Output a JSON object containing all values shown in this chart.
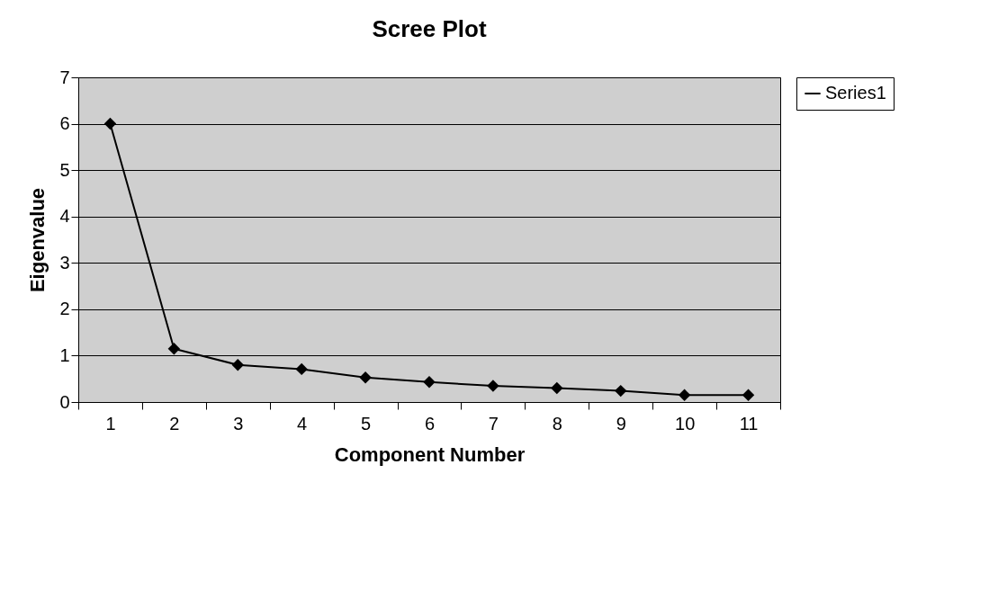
{
  "chart_data": {
    "type": "line",
    "title": "Scree Plot",
    "xlabel": "Component Number",
    "ylabel": "Eigenvalue",
    "categories": [
      "1",
      "2",
      "3",
      "4",
      "5",
      "6",
      "7",
      "8",
      "9",
      "10",
      "11"
    ],
    "series": [
      {
        "name": "Series1",
        "color": "#000000",
        "values": [
          6.0,
          1.15,
          0.8,
          0.71,
          0.53,
          0.43,
          0.35,
          0.3,
          0.24,
          0.15,
          0.15
        ]
      }
    ],
    "ylim": [
      0,
      7
    ],
    "yticks": [
      0,
      1,
      2,
      3,
      4,
      5,
      6,
      7
    ],
    "grid": "y",
    "legend": "right",
    "marker": "diamond",
    "line_style": "solid"
  }
}
